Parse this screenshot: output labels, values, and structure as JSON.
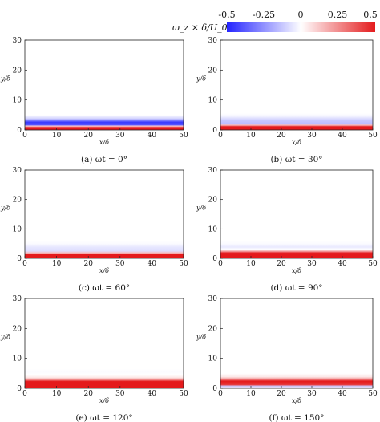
{
  "colorbar": {
    "label": "ω_z × δ/U_0",
    "ticks": [
      "-0.5",
      "-0.25",
      "0",
      "0.25",
      "0.5"
    ],
    "range": [
      -0.5,
      0.5
    ],
    "colors": {
      "negative": "#2424ff",
      "zero": "#ffffff",
      "positive": "#e41a1c"
    }
  },
  "chart_data": [
    {
      "type": "heatmap",
      "caption": "(a) ωt = 0°",
      "xlabel": "x/δ",
      "ylabel": "y/δ",
      "xlim": [
        0,
        50
      ],
      "ylim": [
        0,
        30
      ],
      "xticks": [
        "0",
        "10",
        "20",
        "30",
        "40",
        "50"
      ],
      "yticks": [
        "0",
        "10",
        "20",
        "30"
      ],
      "profile": [
        {
          "y": 0.0,
          "value": 0.5
        },
        {
          "y": 0.8,
          "value": 0.5
        },
        {
          "y": 1.3,
          "value": 0.1
        },
        {
          "y": 1.7,
          "value": -0.4
        },
        {
          "y": 2.6,
          "value": -0.45
        },
        {
          "y": 3.8,
          "value": -0.1
        },
        {
          "y": 5.0,
          "value": 0.0
        }
      ]
    },
    {
      "type": "heatmap",
      "caption": "(b) ωt = 30°",
      "xlabel": "x/δ",
      "ylabel": "y/δ",
      "xlim": [
        0,
        50
      ],
      "ylim": [
        0,
        30
      ],
      "xticks": [
        "0",
        "10",
        "20",
        "30",
        "40",
        "50"
      ],
      "yticks": [
        "0",
        "10",
        "20",
        "30"
      ],
      "profile": [
        {
          "y": 0.0,
          "value": 0.5
        },
        {
          "y": 1.1,
          "value": 0.5
        },
        {
          "y": 1.6,
          "value": 0.15
        },
        {
          "y": 2.2,
          "value": -0.15
        },
        {
          "y": 3.2,
          "value": -0.12
        },
        {
          "y": 4.5,
          "value": -0.03
        },
        {
          "y": 5.5,
          "value": 0.0
        }
      ]
    },
    {
      "type": "heatmap",
      "caption": "(c) ωt = 60°",
      "xlabel": "x/δ",
      "ylabel": "y/δ",
      "xlim": [
        0,
        50
      ],
      "ylim": [
        0,
        30
      ],
      "xticks": [
        "0",
        "10",
        "20",
        "30",
        "40",
        "50"
      ],
      "yticks": [
        "0",
        "10",
        "20",
        "30"
      ],
      "profile": [
        {
          "y": 0.0,
          "value": 0.5
        },
        {
          "y": 1.3,
          "value": 0.5
        },
        {
          "y": 1.8,
          "value": 0.15
        },
        {
          "y": 2.5,
          "value": -0.08
        },
        {
          "y": 3.6,
          "value": -0.06
        },
        {
          "y": 5.0,
          "value": -0.01
        },
        {
          "y": 6.0,
          "value": 0.0
        }
      ]
    },
    {
      "type": "heatmap",
      "caption": "(d) ωt = 90°",
      "xlabel": "x/δ",
      "ylabel": "y/δ",
      "xlim": [
        0,
        50
      ],
      "ylim": [
        0,
        30
      ],
      "xticks": [
        "0",
        "10",
        "20",
        "30",
        "40",
        "50"
      ],
      "yticks": [
        "0",
        "10",
        "20",
        "30"
      ],
      "profile": [
        {
          "y": 0.0,
          "value": 0.5
        },
        {
          "y": 1.8,
          "value": 0.5
        },
        {
          "y": 2.4,
          "value": 0.2
        },
        {
          "y": 3.0,
          "value": 0.0
        },
        {
          "y": 3.8,
          "value": -0.05
        },
        {
          "y": 5.0,
          "value": -0.01
        },
        {
          "y": 6.0,
          "value": 0.0
        }
      ]
    },
    {
      "type": "heatmap",
      "caption": "(e) ωt = 120°",
      "xlabel": "x/δ",
      "ylabel": "y/δ",
      "xlim": [
        0,
        50
      ],
      "ylim": [
        0,
        30
      ],
      "xticks": [
        "0",
        "10",
        "20",
        "30",
        "40",
        "50"
      ],
      "yticks": [
        "0",
        "10",
        "20",
        "30"
      ],
      "profile": [
        {
          "y": 0.0,
          "value": 0.5
        },
        {
          "y": 2.3,
          "value": 0.5
        },
        {
          "y": 2.9,
          "value": 0.22
        },
        {
          "y": 3.6,
          "value": 0.05
        },
        {
          "y": 4.5,
          "value": 0.0
        },
        {
          "y": 5.5,
          "value": -0.01
        },
        {
          "y": 6.5,
          "value": 0.0
        }
      ]
    },
    {
      "type": "heatmap",
      "caption": "(f) ωt = 150°",
      "xlabel": "x/δ",
      "ylabel": "y/δ",
      "xlim": [
        0,
        50
      ],
      "ylim": [
        0,
        30
      ],
      "xticks": [
        "0",
        "10",
        "20",
        "30",
        "40",
        "50"
      ],
      "yticks": [
        "0",
        "10",
        "20",
        "30"
      ],
      "profile": [
        {
          "y": 0.0,
          "value": 0.05
        },
        {
          "y": 0.7,
          "value": -0.12
        },
        {
          "y": 1.2,
          "value": 0.45
        },
        {
          "y": 2.4,
          "value": 0.5
        },
        {
          "y": 3.0,
          "value": 0.25
        },
        {
          "y": 3.8,
          "value": 0.05
        },
        {
          "y": 5.0,
          "value": 0.0
        }
      ]
    }
  ]
}
